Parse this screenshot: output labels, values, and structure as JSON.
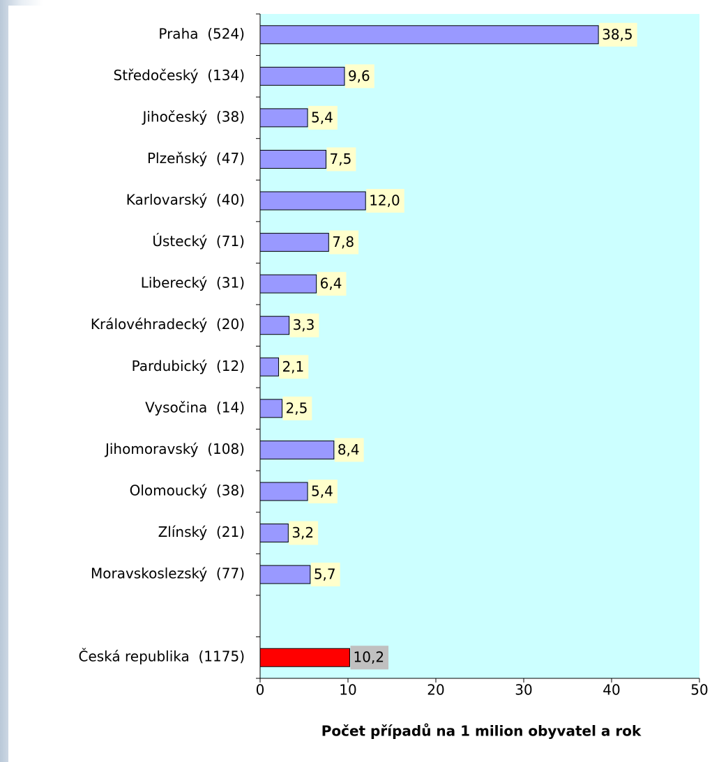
{
  "chart_data": {
    "type": "bar",
    "orientation": "horizontal",
    "x_label": "Počet případů na 1 milion obyvatel a rok",
    "categories": [
      "Praha  (524)",
      "Středočeský  (134)",
      "Jihočeský  (38)",
      "Plzeňský  (47)",
      "Karlovarský  (40)",
      "Ústecký  (71)",
      "Liberecký  (31)",
      "Královéhradecký  (20)",
      "Pardubický  (12)",
      "Vysočina  (14)",
      "Jihomoravský  (108)",
      "Olomoucký  (38)",
      "Zlínský  (21)",
      "Moravskoslezský  (77)",
      null,
      "Česká republika  (1175)"
    ],
    "values": [
      38.5,
      9.6,
      5.4,
      7.5,
      12.0,
      7.8,
      6.4,
      3.3,
      2.1,
      2.5,
      8.4,
      5.4,
      3.2,
      5.7,
      null,
      10.2
    ],
    "value_labels": [
      "38,5",
      "9,6",
      "5,4",
      "7,5",
      "12,0",
      "7,8",
      "6,4",
      "3,3",
      "2,1",
      "2,5",
      "8,4",
      "5,4",
      "3,2",
      "5,7",
      null,
      "10,2"
    ],
    "colors": [
      "#9999ff",
      "#9999ff",
      "#9999ff",
      "#9999ff",
      "#9999ff",
      "#9999ff",
      "#9999ff",
      "#9999ff",
      "#9999ff",
      "#9999ff",
      "#9999ff",
      "#9999ff",
      "#9999ff",
      "#9999ff",
      null,
      "#ff0000"
    ],
    "label_colors": [
      "#ffffcc",
      "#ffffcc",
      "#ffffcc",
      "#ffffcc",
      "#ffffcc",
      "#ffffcc",
      "#ffffcc",
      "#ffffcc",
      "#ffffcc",
      "#ffffcc",
      "#ffffcc",
      "#ffffcc",
      "#ffffcc",
      "#ffffcc",
      null,
      "#c0c0c0"
    ],
    "plot_background": "#ccffff",
    "xlim": [
      0,
      50
    ],
    "xticks": [
      0,
      10,
      20,
      30,
      40,
      50
    ]
  }
}
